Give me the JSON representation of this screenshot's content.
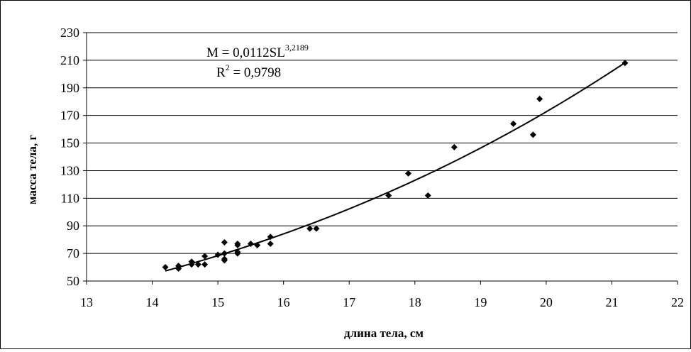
{
  "chart_data": {
    "type": "scatter",
    "xlabel": "длина тела, см",
    "ylabel": "масса тела, г",
    "xlim": [
      13,
      22
    ],
    "ylim": [
      50,
      230
    ],
    "x_ticks": [
      "13",
      "14",
      "15",
      "16",
      "17",
      "18",
      "19",
      "20",
      "21",
      "22"
    ],
    "y_ticks": [
      "50",
      "70",
      "90",
      "110",
      "130",
      "150",
      "170",
      "190",
      "210",
      "230"
    ],
    "grid": "horizontal",
    "legend": "none",
    "marker": "diamond",
    "marker_color": "#000000",
    "series": [
      {
        "points": [
          {
            "x": 14.2,
            "y": 60
          },
          {
            "x": 14.4,
            "y": 59
          },
          {
            "x": 14.4,
            "y": 61
          },
          {
            "x": 14.6,
            "y": 62
          },
          {
            "x": 14.6,
            "y": 64
          },
          {
            "x": 14.7,
            "y": 62
          },
          {
            "x": 14.8,
            "y": 62
          },
          {
            "x": 14.8,
            "y": 68
          },
          {
            "x": 15.0,
            "y": 69
          },
          {
            "x": 15.1,
            "y": 65
          },
          {
            "x": 15.1,
            "y": 66
          },
          {
            "x": 15.1,
            "y": 70
          },
          {
            "x": 15.1,
            "y": 78
          },
          {
            "x": 15.3,
            "y": 70
          },
          {
            "x": 15.3,
            "y": 71
          },
          {
            "x": 15.3,
            "y": 76
          },
          {
            "x": 15.3,
            "y": 77
          },
          {
            "x": 15.5,
            "y": 77
          },
          {
            "x": 15.6,
            "y": 76
          },
          {
            "x": 15.8,
            "y": 77
          },
          {
            "x": 15.8,
            "y": 82
          },
          {
            "x": 16.4,
            "y": 88
          },
          {
            "x": 16.5,
            "y": 88
          },
          {
            "x": 17.6,
            "y": 112
          },
          {
            "x": 17.9,
            "y": 128
          },
          {
            "x": 18.2,
            "y": 112
          },
          {
            "x": 18.6,
            "y": 147
          },
          {
            "x": 19.5,
            "y": 164
          },
          {
            "x": 19.8,
            "y": 156
          },
          {
            "x": 19.9,
            "y": 182
          },
          {
            "x": 21.2,
            "y": 208
          }
        ]
      }
    ],
    "trendline": {
      "type": "power",
      "coefficient": 0.0112,
      "exponent": 3.2189,
      "x_range": [
        14.2,
        21.2
      ]
    },
    "annotations": {
      "equation_main": "M = 0,0112SL",
      "equation_exp": "3,2189",
      "r2_main": "R",
      "r2_exp": "2",
      "r2_value": " = 0,9798"
    }
  }
}
